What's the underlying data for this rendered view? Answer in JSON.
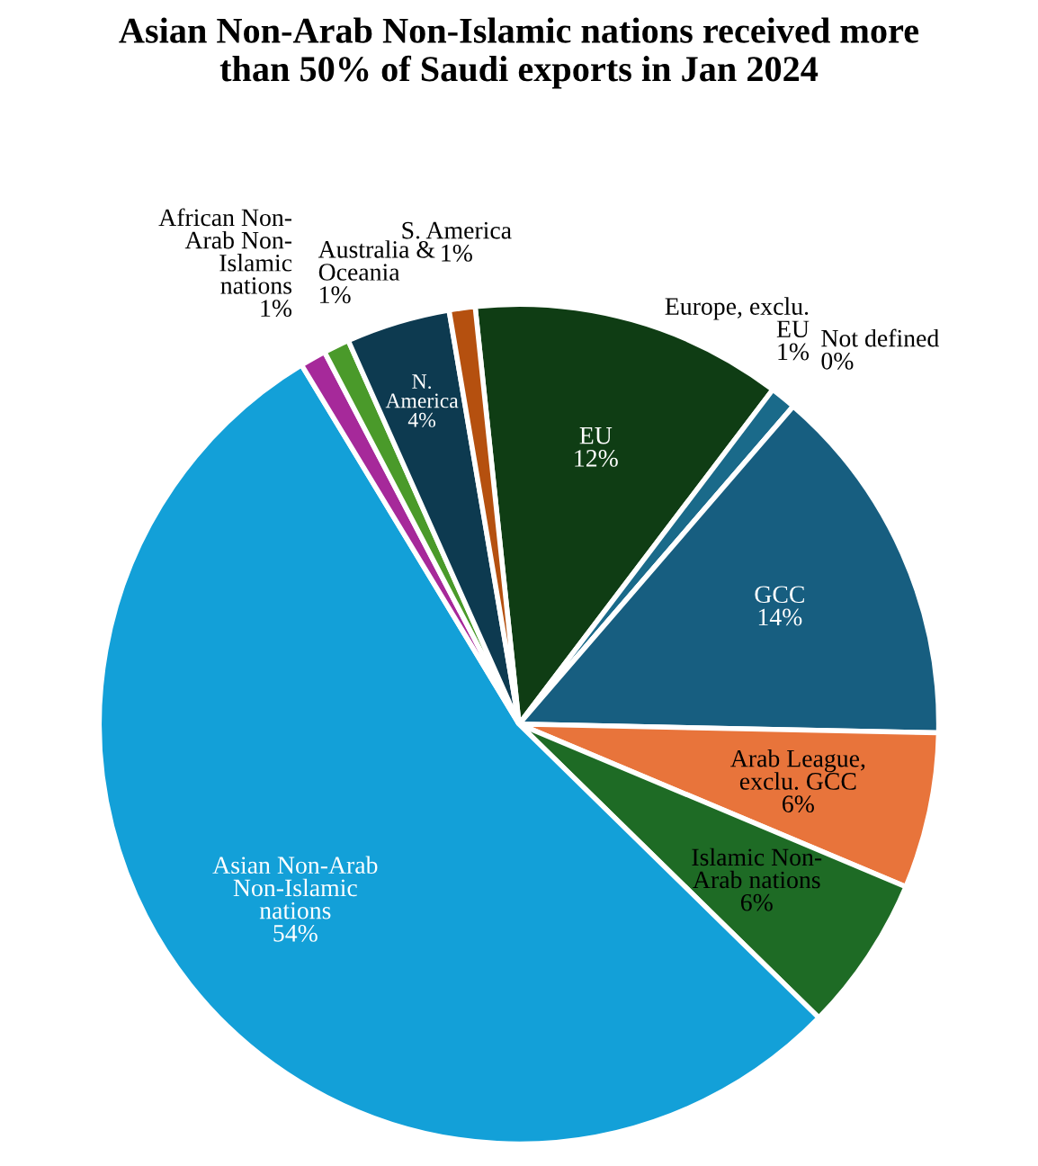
{
  "chart_data": {
    "type": "pie",
    "title": "Asian Non-Arab Non-Islamic nations received more\nthan 50% of Saudi exports in Jan 2024",
    "categories": [
      "EU",
      "Europe, exclu.\nEU",
      "Not defined",
      "GCC",
      "Arab League,\nexclu. GCC",
      "Islamic Non-\nArab nations",
      "Asian Non-Arab\nNon-Islamic\nnations",
      "African Non-\nArab Non-\nIslamic\nnations",
      "Australia &\nOceania",
      "N.\nAmerica",
      "S. America"
    ],
    "values": [
      12,
      1,
      0,
      14,
      6,
      6,
      54,
      1,
      1,
      4,
      1
    ],
    "colors": [
      "#0f3d14",
      "#1a6a8a",
      "#d9d9d9",
      "#175e80",
      "#e8743b",
      "#1e6b25",
      "#13a0d8",
      "#a6299a",
      "#4a9a2a",
      "#0d3a50",
      "#b5500f"
    ],
    "value_labels": [
      "12%",
      "1%",
      "0%",
      "14%",
      "6%",
      "6%",
      "54%",
      "1%",
      "1%",
      "4%",
      "1%"
    ]
  }
}
